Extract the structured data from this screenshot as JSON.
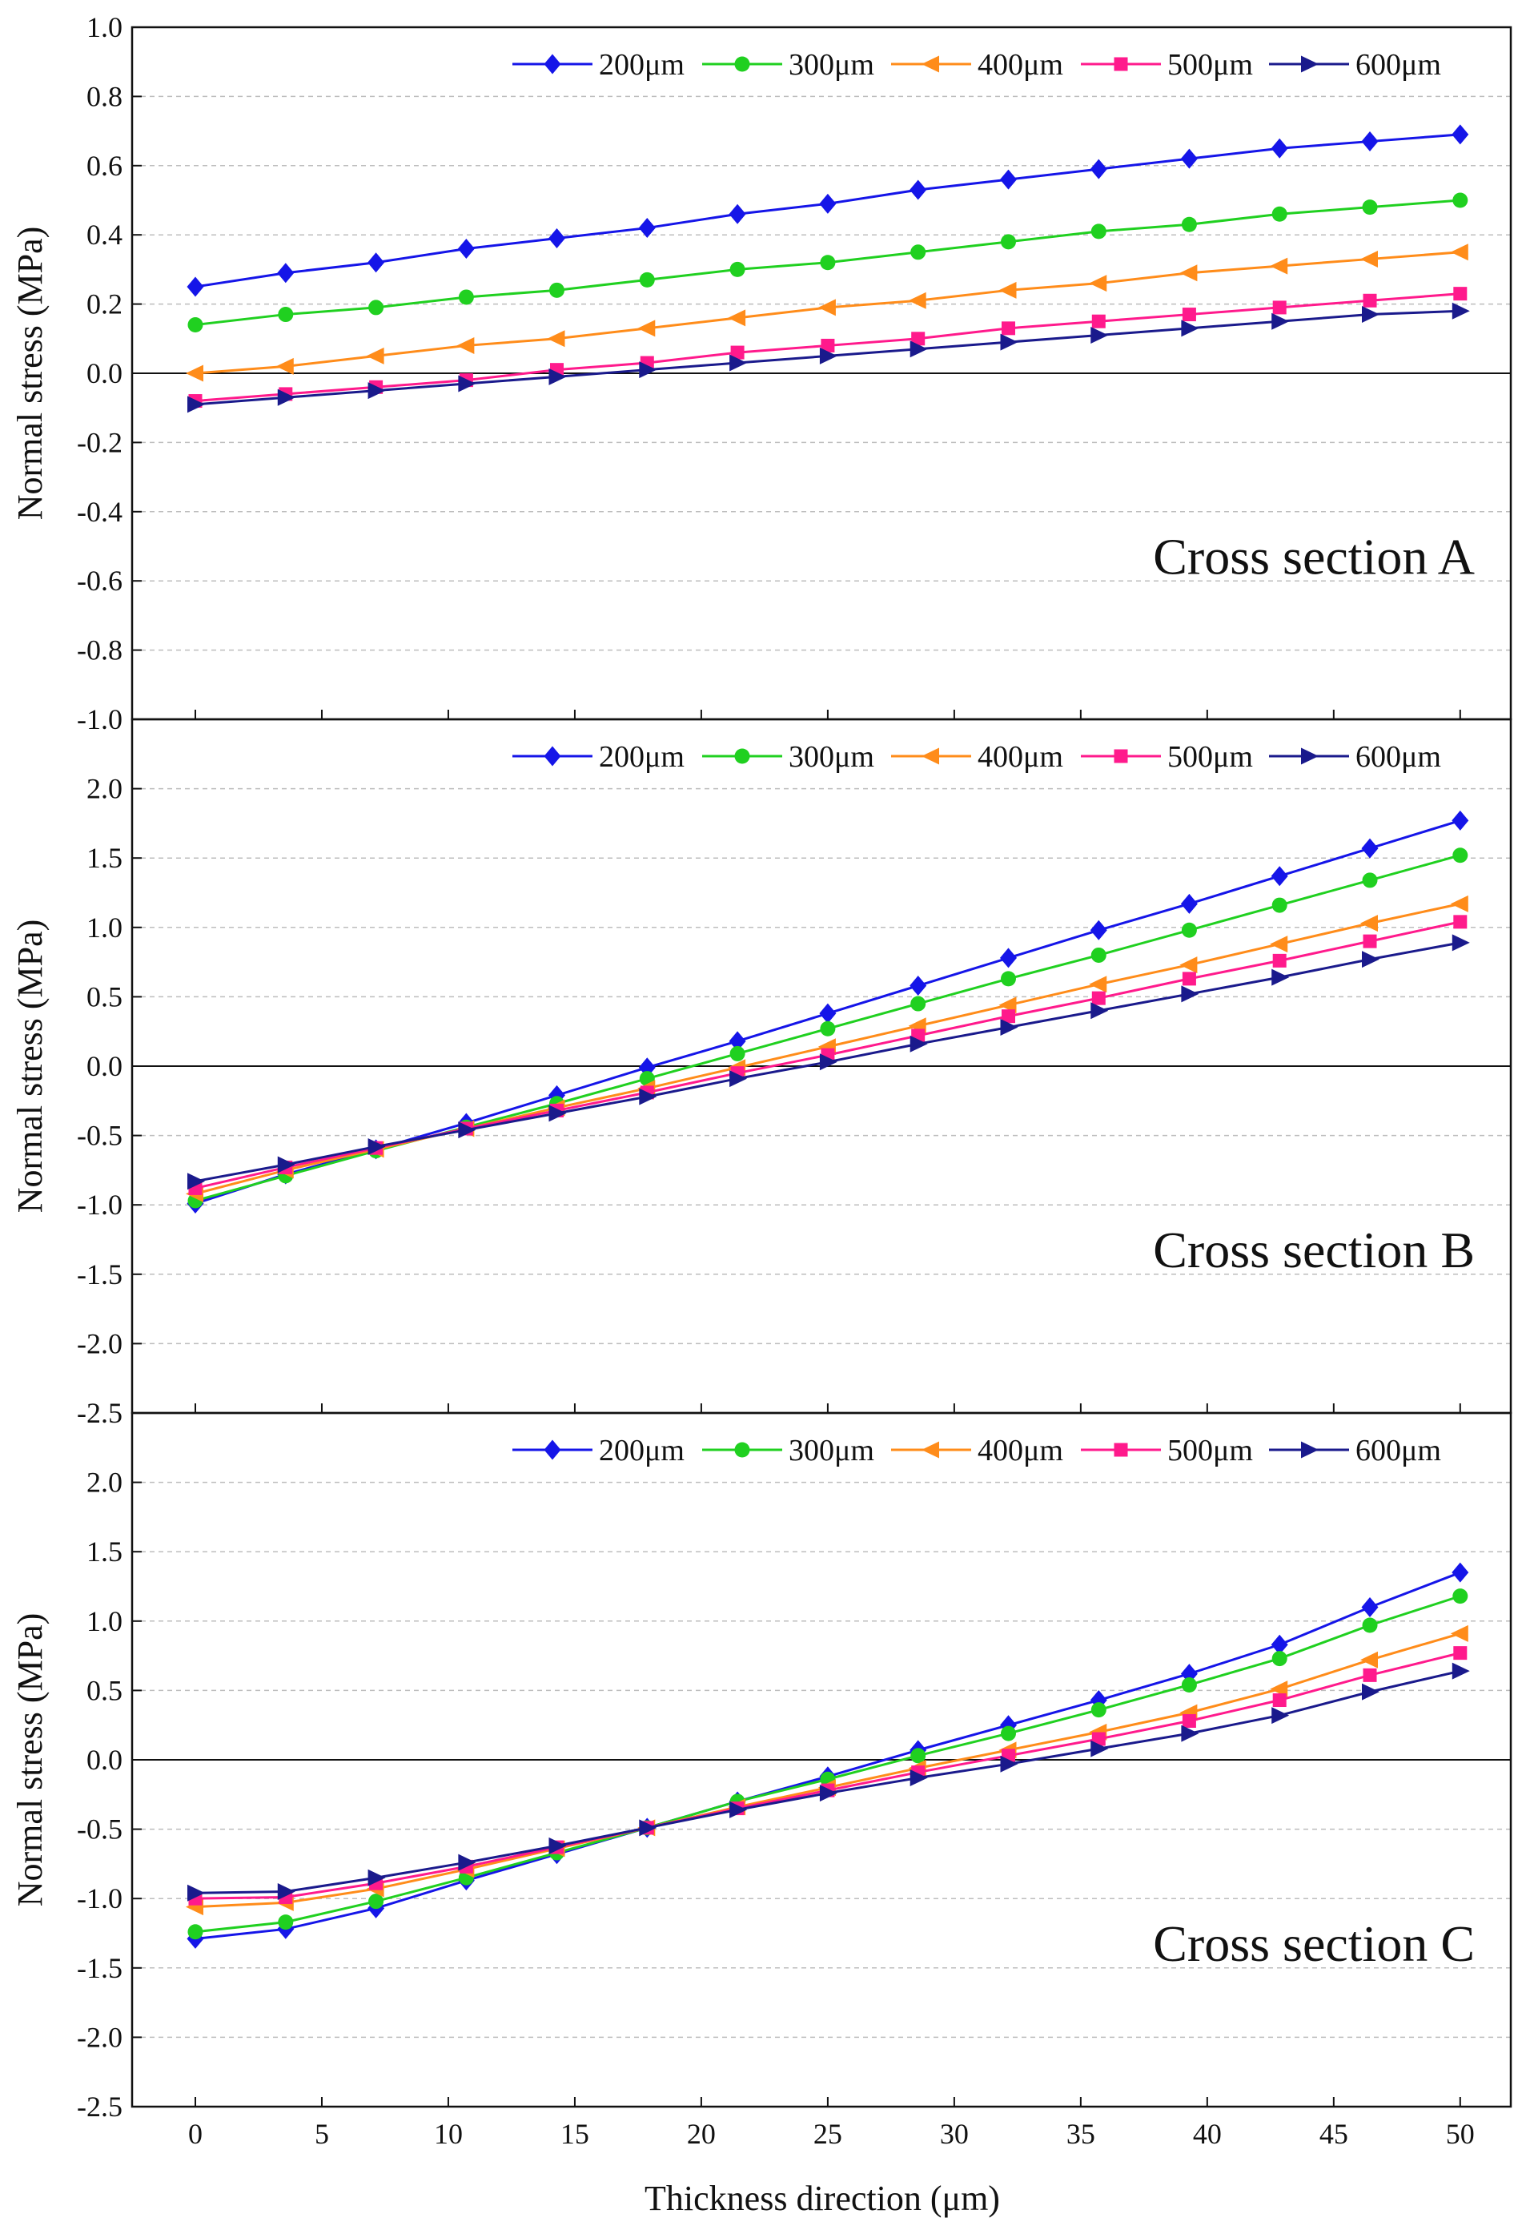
{
  "colors": {
    "200um": "#1515e8",
    "300um": "#20d020",
    "400um": "#ff8c1a",
    "500um": "#ff1a8c",
    "600um": "#1a1a8c"
  },
  "chart_data": [
    {
      "type": "line",
      "title": "",
      "annotation": "Cross section A",
      "xlabel": "Thickness direction (μm)",
      "ylabel": "Normal stress (MPa)",
      "xlim": [
        -2.5,
        52
      ],
      "ylim": [
        -1.0,
        1.0
      ],
      "yticks": [
        "-1.0",
        "-0.8",
        "-0.6",
        "-0.4",
        "-0.2",
        "0.0",
        "0.2",
        "0.4",
        "0.6",
        "0.8",
        "1.0"
      ],
      "show_xticks": false,
      "grid": true,
      "legend": "top-right",
      "x": [
        0,
        3.57,
        7.14,
        10.71,
        14.29,
        17.86,
        21.43,
        25,
        28.57,
        32.14,
        35.71,
        39.29,
        42.86,
        46.43,
        50
      ],
      "series": [
        {
          "name": "200μm",
          "marker": "diamond",
          "values": [
            0.25,
            0.29,
            0.32,
            0.36,
            0.39,
            0.42,
            0.46,
            0.49,
            0.53,
            0.56,
            0.59,
            0.62,
            0.65,
            0.67,
            0.69
          ]
        },
        {
          "name": "300μm",
          "marker": "circle",
          "values": [
            0.14,
            0.17,
            0.19,
            0.22,
            0.24,
            0.27,
            0.3,
            0.32,
            0.35,
            0.38,
            0.41,
            0.43,
            0.46,
            0.48,
            0.5
          ]
        },
        {
          "name": "400μm",
          "marker": "triangle-left",
          "values": [
            0.0,
            0.02,
            0.05,
            0.08,
            0.1,
            0.13,
            0.16,
            0.19,
            0.21,
            0.24,
            0.26,
            0.29,
            0.31,
            0.33,
            0.35
          ]
        },
        {
          "name": "500μm",
          "marker": "square",
          "values": [
            -0.08,
            -0.06,
            -0.04,
            -0.02,
            0.01,
            0.03,
            0.06,
            0.08,
            0.1,
            0.13,
            0.15,
            0.17,
            0.19,
            0.21,
            0.23
          ]
        },
        {
          "name": "600μm",
          "marker": "triangle-right",
          "values": [
            -0.09,
            -0.07,
            -0.05,
            -0.03,
            -0.01,
            0.01,
            0.03,
            0.05,
            0.07,
            0.09,
            0.11,
            0.13,
            0.15,
            0.17,
            0.18
          ]
        }
      ]
    },
    {
      "type": "line",
      "title": "",
      "annotation": "Cross section B",
      "xlabel": "Thickness direction (μm)",
      "ylabel": "Normal stress (MPa)",
      "xlim": [
        -2.5,
        52
      ],
      "ylim": [
        -2.5,
        2.5
      ],
      "yticks": [
        "-2.5",
        "-2.0",
        "-1.5",
        "-1.0",
        "-0.5",
        "0.0",
        "0.5",
        "1.0",
        "1.5",
        "2.0"
      ],
      "show_xticks": false,
      "grid": true,
      "legend": "top-right",
      "x": [
        0,
        3.57,
        7.14,
        10.71,
        14.29,
        17.86,
        21.43,
        25,
        28.57,
        32.14,
        35.71,
        39.29,
        42.86,
        46.43,
        50
      ],
      "series": [
        {
          "name": "200μm",
          "marker": "diamond",
          "values": [
            -0.99,
            -0.78,
            -0.6,
            -0.41,
            -0.21,
            -0.01,
            0.18,
            0.38,
            0.58,
            0.78,
            0.98,
            1.17,
            1.37,
            1.57,
            1.77
          ]
        },
        {
          "name": "300μm",
          "marker": "circle",
          "values": [
            -0.97,
            -0.79,
            -0.61,
            -0.44,
            -0.27,
            -0.09,
            0.09,
            0.27,
            0.45,
            0.63,
            0.8,
            0.98,
            1.16,
            1.34,
            1.52
          ]
        },
        {
          "name": "400μm",
          "marker": "triangle-left",
          "values": [
            -0.92,
            -0.75,
            -0.6,
            -0.45,
            -0.3,
            -0.16,
            -0.01,
            0.14,
            0.29,
            0.44,
            0.59,
            0.73,
            0.88,
            1.03,
            1.17
          ]
        },
        {
          "name": "500μm",
          "marker": "square",
          "values": [
            -0.88,
            -0.73,
            -0.59,
            -0.45,
            -0.32,
            -0.19,
            -0.05,
            0.08,
            0.22,
            0.36,
            0.49,
            0.63,
            0.76,
            0.9,
            1.04
          ]
        },
        {
          "name": "600μm",
          "marker": "triangle-right",
          "values": [
            -0.83,
            -0.71,
            -0.58,
            -0.46,
            -0.34,
            -0.22,
            -0.09,
            0.03,
            0.16,
            0.28,
            0.4,
            0.52,
            0.64,
            0.77,
            0.89
          ]
        }
      ]
    },
    {
      "type": "line",
      "title": "",
      "annotation": "Cross section C",
      "xlabel": "Thickness direction (μm)",
      "ylabel": "Normal stress (MPa)",
      "xlim": [
        -2.5,
        52
      ],
      "ylim": [
        -2.5,
        2.5
      ],
      "yticks": [
        "-2.5",
        "-2.0",
        "-1.5",
        "-1.0",
        "-0.5",
        "0.0",
        "0.5",
        "1.0",
        "1.5",
        "2.0"
      ],
      "xticks": [
        "0",
        "5",
        "10",
        "15",
        "20",
        "25",
        "30",
        "35",
        "40",
        "45",
        "50"
      ],
      "show_xticks": true,
      "grid": true,
      "legend": "top-right",
      "x": [
        0,
        3.57,
        7.14,
        10.71,
        14.29,
        17.86,
        21.43,
        25,
        28.57,
        32.14,
        35.71,
        39.29,
        42.86,
        46.43,
        50
      ],
      "series": [
        {
          "name": "200μm",
          "marker": "diamond",
          "values": [
            -1.29,
            -1.22,
            -1.07,
            -0.87,
            -0.68,
            -0.49,
            -0.3,
            -0.12,
            0.07,
            0.25,
            0.43,
            0.62,
            0.83,
            1.1,
            1.35
          ]
        },
        {
          "name": "300μm",
          "marker": "circle",
          "values": [
            -1.24,
            -1.17,
            -1.02,
            -0.85,
            -0.67,
            -0.49,
            -0.3,
            -0.14,
            0.03,
            0.19,
            0.36,
            0.54,
            0.73,
            0.97,
            1.18
          ]
        },
        {
          "name": "400μm",
          "marker": "triangle-left",
          "values": [
            -1.06,
            -1.03,
            -0.93,
            -0.79,
            -0.64,
            -0.49,
            -0.34,
            -0.2,
            -0.06,
            0.07,
            0.2,
            0.34,
            0.51,
            0.72,
            0.91
          ]
        },
        {
          "name": "500μm",
          "marker": "square",
          "values": [
            -1.0,
            -0.99,
            -0.89,
            -0.77,
            -0.63,
            -0.49,
            -0.35,
            -0.22,
            -0.09,
            0.03,
            0.15,
            0.28,
            0.43,
            0.61,
            0.77
          ]
        },
        {
          "name": "600μm",
          "marker": "triangle-right",
          "values": [
            -0.96,
            -0.95,
            -0.85,
            -0.74,
            -0.62,
            -0.49,
            -0.36,
            -0.24,
            -0.13,
            -0.03,
            0.08,
            0.19,
            0.32,
            0.49,
            0.64
          ]
        }
      ]
    }
  ]
}
